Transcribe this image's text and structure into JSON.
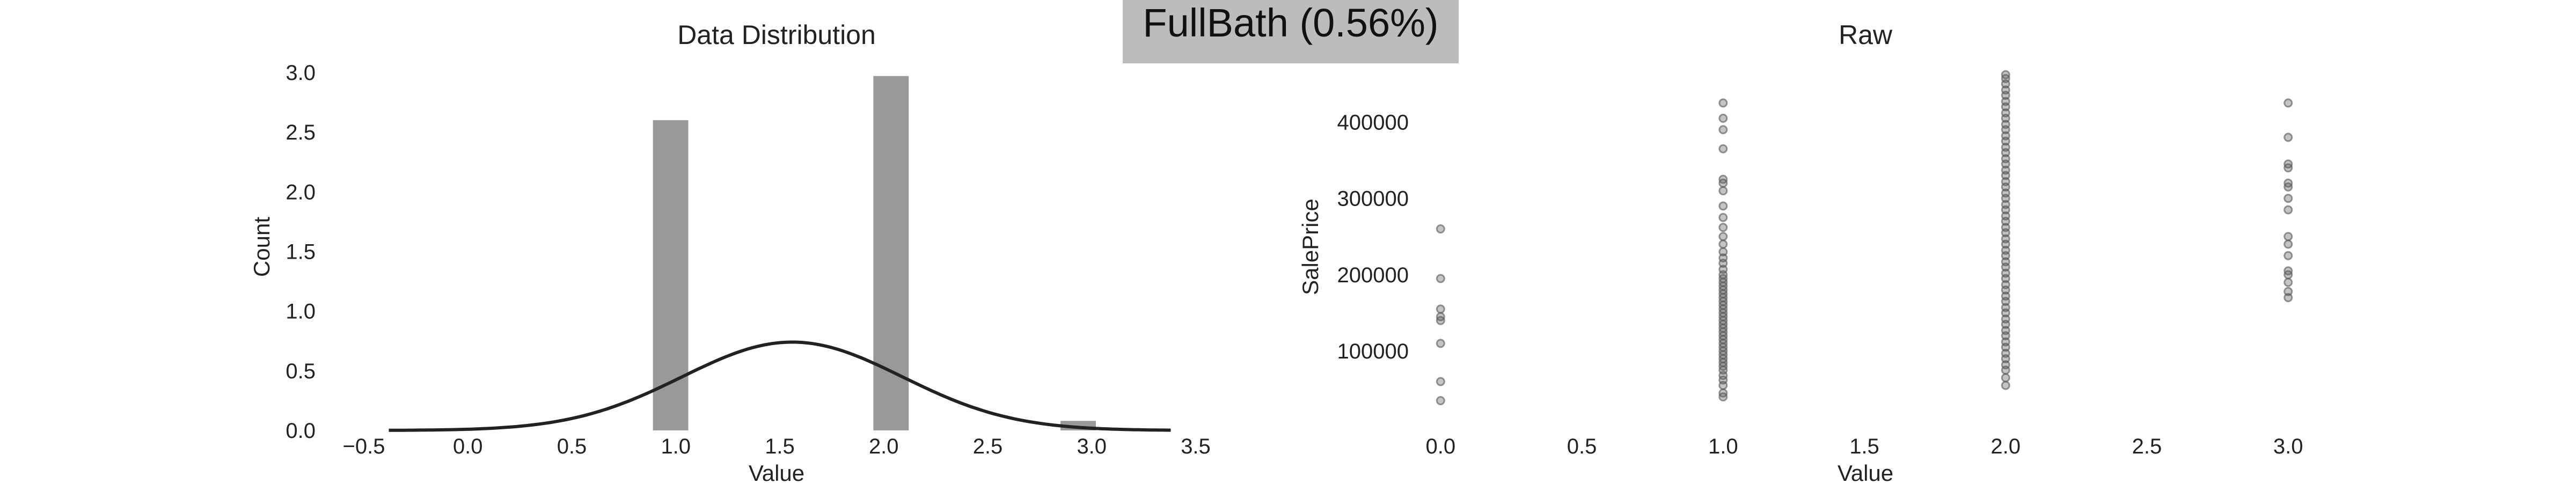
{
  "figure": {
    "suptitle": "FullBath (0.56%)"
  },
  "colors": {
    "suptitle_box": "#bcbcbc",
    "bar_fill": "#999999",
    "kde_line": "#222222",
    "points": "#555555",
    "text": "#222222"
  },
  "chart_data": [
    {
      "type": "bar",
      "title": "Data Distribution",
      "xlabel": "Value",
      "ylabel": "Count",
      "xlim": [
        -0.5,
        3.5
      ],
      "ylim": [
        0,
        3.0
      ],
      "xticks": [
        "−0.5",
        "0.0",
        "0.5",
        "1.0",
        "1.5",
        "2.0",
        "2.5",
        "3.0",
        "3.5"
      ],
      "xtick_values": [
        -0.5,
        0.0,
        0.5,
        1.0,
        1.5,
        2.0,
        2.5,
        3.0,
        3.5
      ],
      "yticks": [
        "0.0",
        "0.5",
        "1.0",
        "1.5",
        "2.0",
        "2.5",
        "3.0"
      ],
      "ytick_values": [
        0.0,
        0.5,
        1.0,
        1.5,
        2.0,
        2.5,
        3.0
      ],
      "bars": [
        {
          "x0": 0.89,
          "x1": 1.06,
          "value": 2.6
        },
        {
          "x0": 1.95,
          "x1": 2.12,
          "value": 2.97
        },
        {
          "x0": 2.85,
          "x1": 3.02,
          "value": 0.08
        }
      ],
      "kde": {
        "name": "density",
        "x_range": [
          -0.38,
          3.38
        ],
        "mean": 1.56,
        "std": 0.53,
        "peak": 0.74
      }
    },
    {
      "type": "scatter",
      "title": "Raw",
      "xlabel": "Value",
      "ylabel": "SalePrice",
      "xlim": [
        -0.05,
        3.05
      ],
      "ylim": [
        15000,
        465000
      ],
      "xticks": [
        "0.0",
        "0.5",
        "1.0",
        "1.5",
        "2.0",
        "2.5",
        "3.0"
      ],
      "xtick_values": [
        0.0,
        0.5,
        1.0,
        1.5,
        2.0,
        2.5,
        3.0
      ],
      "yticks": [
        "100000",
        "200000",
        "300000",
        "400000"
      ],
      "ytick_values": [
        100000,
        200000,
        300000,
        400000
      ],
      "points": [
        {
          "x": 0,
          "y": 35000
        },
        {
          "x": 0,
          "y": 60000
        },
        {
          "x": 0,
          "y": 110000
        },
        {
          "x": 0,
          "y": 140000
        },
        {
          "x": 0,
          "y": 145000
        },
        {
          "x": 0,
          "y": 155000
        },
        {
          "x": 0,
          "y": 195000
        },
        {
          "x": 0,
          "y": 260000
        },
        {
          "x": 1,
          "y": 40000
        },
        {
          "x": 1,
          "y": 45000
        },
        {
          "x": 1,
          "y": 55000
        },
        {
          "x": 1,
          "y": 62000
        },
        {
          "x": 1,
          "y": 68000
        },
        {
          "x": 1,
          "y": 75000
        },
        {
          "x": 1,
          "y": 80000
        },
        {
          "x": 1,
          "y": 85000
        },
        {
          "x": 1,
          "y": 90000
        },
        {
          "x": 1,
          "y": 95000
        },
        {
          "x": 1,
          "y": 100000
        },
        {
          "x": 1,
          "y": 105000
        },
        {
          "x": 1,
          "y": 110000
        },
        {
          "x": 1,
          "y": 115000
        },
        {
          "x": 1,
          "y": 120000
        },
        {
          "x": 1,
          "y": 125000
        },
        {
          "x": 1,
          "y": 130000
        },
        {
          "x": 1,
          "y": 135000
        },
        {
          "x": 1,
          "y": 140000
        },
        {
          "x": 1,
          "y": 145000
        },
        {
          "x": 1,
          "y": 150000
        },
        {
          "x": 1,
          "y": 155000
        },
        {
          "x": 1,
          "y": 160000
        },
        {
          "x": 1,
          "y": 165000
        },
        {
          "x": 1,
          "y": 170000
        },
        {
          "x": 1,
          "y": 175000
        },
        {
          "x": 1,
          "y": 180000
        },
        {
          "x": 1,
          "y": 185000
        },
        {
          "x": 1,
          "y": 190000
        },
        {
          "x": 1,
          "y": 195000
        },
        {
          "x": 1,
          "y": 200000
        },
        {
          "x": 1,
          "y": 207000
        },
        {
          "x": 1,
          "y": 215000
        },
        {
          "x": 1,
          "y": 222000
        },
        {
          "x": 1,
          "y": 230000
        },
        {
          "x": 1,
          "y": 240000
        },
        {
          "x": 1,
          "y": 250000
        },
        {
          "x": 1,
          "y": 262000
        },
        {
          "x": 1,
          "y": 275000
        },
        {
          "x": 1,
          "y": 290000
        },
        {
          "x": 1,
          "y": 310000
        },
        {
          "x": 1,
          "y": 320000
        },
        {
          "x": 1,
          "y": 325000
        },
        {
          "x": 1,
          "y": 365000
        },
        {
          "x": 1,
          "y": 390000
        },
        {
          "x": 1,
          "y": 405000
        },
        {
          "x": 1,
          "y": 425000
        },
        {
          "x": 2,
          "y": 55000
        },
        {
          "x": 2,
          "y": 65000
        },
        {
          "x": 2,
          "y": 75000
        },
        {
          "x": 2,
          "y": 82000
        },
        {
          "x": 2,
          "y": 90000
        },
        {
          "x": 2,
          "y": 97000
        },
        {
          "x": 2,
          "y": 105000
        },
        {
          "x": 2,
          "y": 112000
        },
        {
          "x": 2,
          "y": 120000
        },
        {
          "x": 2,
          "y": 127000
        },
        {
          "x": 2,
          "y": 135000
        },
        {
          "x": 2,
          "y": 142000
        },
        {
          "x": 2,
          "y": 150000
        },
        {
          "x": 2,
          "y": 157000
        },
        {
          "x": 2,
          "y": 165000
        },
        {
          "x": 2,
          "y": 172000
        },
        {
          "x": 2,
          "y": 180000
        },
        {
          "x": 2,
          "y": 187000
        },
        {
          "x": 2,
          "y": 195000
        },
        {
          "x": 2,
          "y": 202000
        },
        {
          "x": 2,
          "y": 210000
        },
        {
          "x": 2,
          "y": 217000
        },
        {
          "x": 2,
          "y": 225000
        },
        {
          "x": 2,
          "y": 232000
        },
        {
          "x": 2,
          "y": 240000
        },
        {
          "x": 2,
          "y": 247000
        },
        {
          "x": 2,
          "y": 255000
        },
        {
          "x": 2,
          "y": 262000
        },
        {
          "x": 2,
          "y": 270000
        },
        {
          "x": 2,
          "y": 277000
        },
        {
          "x": 2,
          "y": 285000
        },
        {
          "x": 2,
          "y": 292000
        },
        {
          "x": 2,
          "y": 300000
        },
        {
          "x": 2,
          "y": 307000
        },
        {
          "x": 2,
          "y": 315000
        },
        {
          "x": 2,
          "y": 322000
        },
        {
          "x": 2,
          "y": 330000
        },
        {
          "x": 2,
          "y": 337000
        },
        {
          "x": 2,
          "y": 345000
        },
        {
          "x": 2,
          "y": 352000
        },
        {
          "x": 2,
          "y": 360000
        },
        {
          "x": 2,
          "y": 367000
        },
        {
          "x": 2,
          "y": 375000
        },
        {
          "x": 2,
          "y": 382000
        },
        {
          "x": 2,
          "y": 390000
        },
        {
          "x": 2,
          "y": 397000
        },
        {
          "x": 2,
          "y": 405000
        },
        {
          "x": 2,
          "y": 412000
        },
        {
          "x": 2,
          "y": 420000
        },
        {
          "x": 2,
          "y": 427000
        },
        {
          "x": 2,
          "y": 435000
        },
        {
          "x": 2,
          "y": 442000
        },
        {
          "x": 2,
          "y": 450000
        },
        {
          "x": 2,
          "y": 457000
        },
        {
          "x": 2,
          "y": 462000
        },
        {
          "x": 3,
          "y": 170000
        },
        {
          "x": 3,
          "y": 178000
        },
        {
          "x": 3,
          "y": 190000
        },
        {
          "x": 3,
          "y": 200000
        },
        {
          "x": 3,
          "y": 205000
        },
        {
          "x": 3,
          "y": 225000
        },
        {
          "x": 3,
          "y": 240000
        },
        {
          "x": 3,
          "y": 250000
        },
        {
          "x": 3,
          "y": 285000
        },
        {
          "x": 3,
          "y": 300000
        },
        {
          "x": 3,
          "y": 315000
        },
        {
          "x": 3,
          "y": 320000
        },
        {
          "x": 3,
          "y": 340000
        },
        {
          "x": 3,
          "y": 345000
        },
        {
          "x": 3,
          "y": 380000
        },
        {
          "x": 3,
          "y": 425000
        }
      ]
    }
  ]
}
